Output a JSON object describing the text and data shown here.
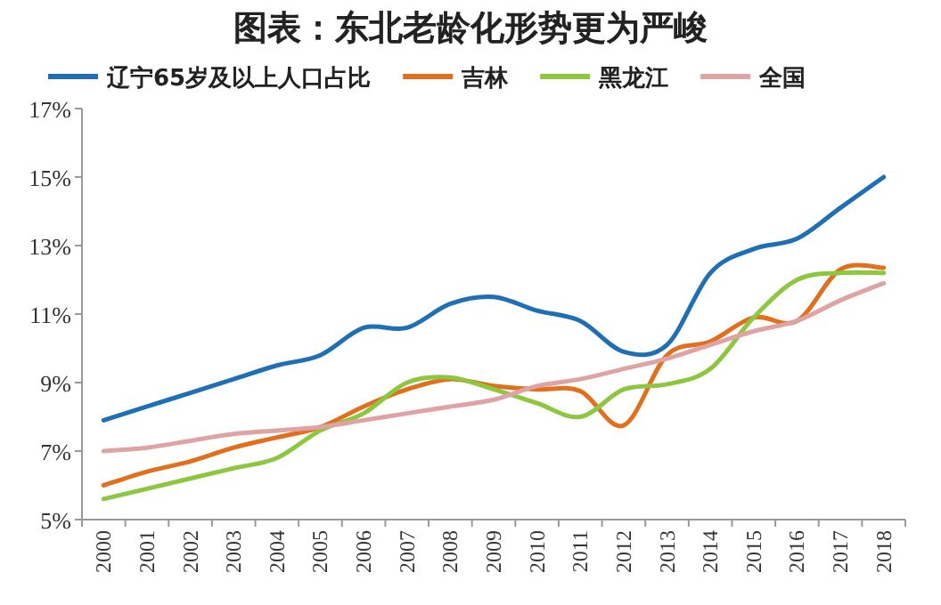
{
  "chart_data": {
    "type": "line",
    "title": "图表：东北老龄化形势更为严峻",
    "categories": [
      "2000",
      "2001",
      "2002",
      "2003",
      "2004",
      "2005",
      "2006",
      "2007",
      "2008",
      "2009",
      "2010",
      "2011",
      "2012",
      "2013",
      "2014",
      "2015",
      "2016",
      "2017",
      "2018"
    ],
    "series": [
      {
        "name": "辽宁65岁及以上人口占比",
        "color": "#1f6fb5",
        "values": [
          7.9,
          8.3,
          8.7,
          9.1,
          9.5,
          9.8,
          10.6,
          10.6,
          11.3,
          11.5,
          11.1,
          10.8,
          9.9,
          10.1,
          12.2,
          12.9,
          13.2,
          14.1,
          15.0
        ]
      },
      {
        "name": "吉林",
        "color": "#e0701e",
        "values": [
          6.0,
          6.4,
          6.7,
          7.1,
          7.4,
          7.7,
          8.3,
          8.8,
          9.1,
          8.9,
          8.8,
          8.75,
          7.75,
          9.8,
          10.2,
          10.9,
          10.8,
          12.3,
          12.35
        ]
      },
      {
        "name": "黑龙江",
        "color": "#8dc63f",
        "values": [
          5.6,
          5.9,
          6.2,
          6.5,
          6.8,
          7.6,
          8.1,
          9.0,
          9.15,
          8.8,
          8.4,
          8.0,
          8.8,
          8.95,
          9.4,
          10.9,
          12.0,
          12.2,
          12.2
        ]
      },
      {
        "name": "全国",
        "color": "#e0a3a3",
        "values": [
          7.0,
          7.1,
          7.3,
          7.5,
          7.6,
          7.7,
          7.9,
          8.1,
          8.3,
          8.5,
          8.9,
          9.1,
          9.4,
          9.7,
          10.1,
          10.5,
          10.8,
          11.4,
          11.9
        ]
      }
    ],
    "ylim": [
      5,
      17
    ],
    "yticks": [
      {
        "value": 5,
        "label": "5%"
      },
      {
        "value": 7,
        "label": "7%"
      },
      {
        "value": 9,
        "label": "9%"
      },
      {
        "value": 11,
        "label": "11%"
      },
      {
        "value": 13,
        "label": "13%"
      },
      {
        "value": 15,
        "label": "15%"
      },
      {
        "value": 17,
        "label": "17%"
      }
    ],
    "legend": "top",
    "grid": false,
    "marker": "none",
    "line_style": "solid"
  }
}
